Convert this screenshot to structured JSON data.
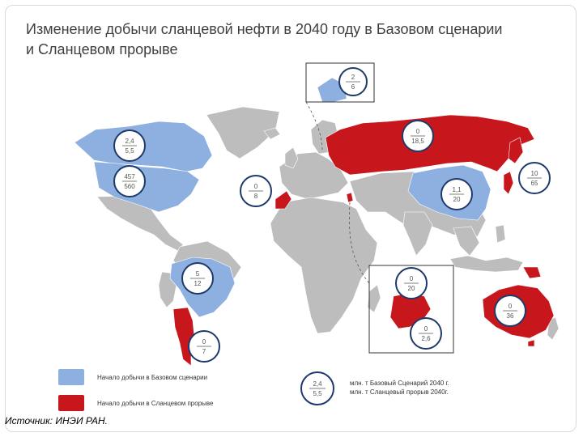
{
  "title": {
    "line1": "Изменение добычи сланцевой нефти в 2040 году в Базовом сценарии",
    "line2": "и Сланцевом прорыве"
  },
  "colors": {
    "base": "#8eb0e0",
    "breakthrough": "#c8161d",
    "land": "#bdbdbd",
    "border": "#ffffff"
  },
  "regions": {
    "canada": {
      "base": "2,4",
      "breakthrough": "5,5"
    },
    "usa": {
      "base": "457",
      "breakthrough": "560"
    },
    "alaska": {
      "base": "2",
      "breakthrough": "6"
    },
    "russia": {
      "base": "0",
      "breakthrough": "18,5"
    },
    "japan": {
      "base": "10",
      "breakthrough": "65"
    },
    "morocco": {
      "base": "0",
      "breakthrough": "8"
    },
    "china": {
      "base": "1,1",
      "breakthrough": "20"
    },
    "brazil": {
      "base": "5",
      "breakthrough": "12"
    },
    "argentina": {
      "base": "0",
      "breakthrough": "7"
    },
    "south_africa": {
      "base": "0",
      "breakthrough": "20"
    },
    "south_africa_small": {
      "base": "0",
      "breakthrough": "2,6"
    },
    "australia": {
      "base": "0",
      "breakthrough": "36"
    }
  },
  "legend": {
    "base_label": "Начало добычи в Базовом сценарии",
    "breakthrough_label": "Начало добычи в Сланцевом прорыве",
    "example_top": "2,4",
    "example_bottom": "5,5",
    "unit_line1": "млн. т  Базовый Сценарий 2040 г.",
    "unit_line2": "млн. т  Сланцевый прорыв 2040г."
  },
  "source": "Источник: ИНЭИ РАН."
}
